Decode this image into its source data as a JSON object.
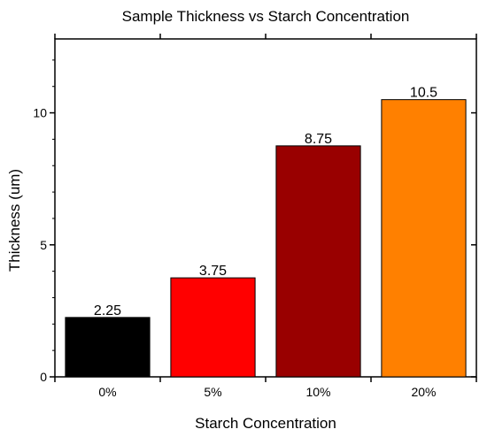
{
  "chart_data": {
    "type": "bar",
    "title": "Sample Thickness vs Starch Concentration",
    "xlabel": "Starch Concentration",
    "ylabel": "Thickness (um)",
    "categories": [
      "0%",
      "5%",
      "10%",
      "20%"
    ],
    "values": [
      2.25,
      3.75,
      8.75,
      10.5
    ],
    "data_labels": [
      "2.25",
      "3.75",
      "8.75",
      "10.5"
    ],
    "colors": [
      "#000000",
      "#ff0000",
      "#990000",
      "#ff8000"
    ],
    "ylim": [
      0,
      12.8
    ],
    "yticks": [
      0,
      5,
      10
    ],
    "ytick_labels": [
      "0",
      "5",
      "10"
    ],
    "grid": false,
    "legend": "none"
  }
}
